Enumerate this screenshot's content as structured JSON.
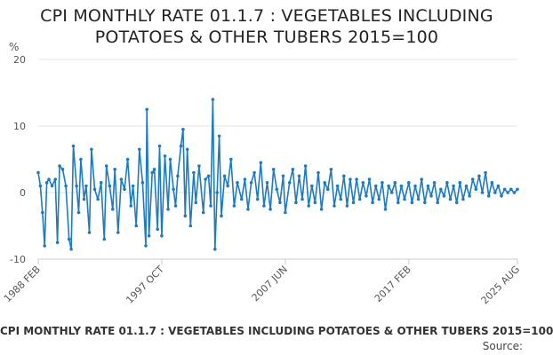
{
  "chart_data": {
    "type": "line",
    "title_lines": [
      "CPI MONTHLY RATE 01.1.7 : VEGETABLES INCLUDING",
      "POTATOES & OTHER TUBERS 2015=100"
    ],
    "ylabel": "%",
    "xlabel": "",
    "ylim": [
      -10,
      20
    ],
    "yticks": [
      -10,
      0,
      10,
      20
    ],
    "xlim": [
      "1988-02",
      "2025-08"
    ],
    "xticks": [
      "1988 FEB",
      "1997 OCT",
      "2007 JUN",
      "2017 FEB",
      "2025 AUG"
    ],
    "grid": "horizontal",
    "series_color": "#1f7bc1",
    "series": [
      {
        "points": [
          [
            "1988-02",
            3.0
          ],
          [
            "1988-04",
            1.0
          ],
          [
            "1988-06",
            -3.0
          ],
          [
            "1988-08",
            -8.0
          ],
          [
            "1988-10",
            1.5
          ],
          [
            "1988-12",
            2.0
          ],
          [
            "1989-03",
            1.0
          ],
          [
            "1989-06",
            2.0
          ],
          [
            "1989-08",
            -7.5
          ],
          [
            "1989-10",
            4.0
          ],
          [
            "1990-01",
            3.5
          ],
          [
            "1990-04",
            1.0
          ],
          [
            "1990-07",
            -7.0
          ],
          [
            "1990-09",
            -8.5
          ],
          [
            "1990-11",
            7.0
          ],
          [
            "1991-02",
            1.0
          ],
          [
            "1991-04",
            -3.0
          ],
          [
            "1991-06",
            5.0
          ],
          [
            "1991-09",
            -1.0
          ],
          [
            "1991-11",
            1.0
          ],
          [
            "1992-02",
            -6.0
          ],
          [
            "1992-04",
            6.5
          ],
          [
            "1992-07",
            0.5
          ],
          [
            "1992-10",
            -1.0
          ],
          [
            "1993-01",
            1.5
          ],
          [
            "1993-04",
            -7.0
          ],
          [
            "1993-06",
            4.0
          ],
          [
            "1993-09",
            1.0
          ],
          [
            "1993-12",
            -2.5
          ],
          [
            "1994-02",
            3.5
          ],
          [
            "1994-05",
            -6.0
          ],
          [
            "1994-08",
            2.0
          ],
          [
            "1994-11",
            0.5
          ],
          [
            "1995-02",
            5.0
          ],
          [
            "1995-05",
            -2.0
          ],
          [
            "1995-07",
            1.0
          ],
          [
            "1995-10",
            -5.0
          ],
          [
            "1996-01",
            6.5
          ],
          [
            "1996-04",
            1.5
          ],
          [
            "1996-07",
            -8.0
          ],
          [
            "1996-08",
            12.5
          ],
          [
            "1996-10",
            -6.5
          ],
          [
            "1997-01",
            3.0
          ],
          [
            "1997-03",
            3.5
          ],
          [
            "1997-06",
            -5.5
          ],
          [
            "1997-08",
            7.0
          ],
          [
            "1997-10",
            -6.5
          ],
          [
            "1998-01",
            5.5
          ],
          [
            "1998-04",
            -2.5
          ],
          [
            "1998-06",
            5.0
          ],
          [
            "1998-09",
            0.5
          ],
          [
            "1998-11",
            -2.0
          ],
          [
            "1999-01",
            2.5
          ],
          [
            "1999-04",
            7.0
          ],
          [
            "1999-06",
            9.5
          ],
          [
            "1999-08",
            -3.5
          ],
          [
            "1999-10",
            6.5
          ],
          [
            "2000-01",
            -5.0
          ],
          [
            "2000-04",
            3.0
          ],
          [
            "2000-06",
            -1.5
          ],
          [
            "2000-09",
            4.0
          ],
          [
            "2001-01",
            -3.0
          ],
          [
            "2001-03",
            2.0
          ],
          [
            "2001-06",
            2.5
          ],
          [
            "2001-08",
            -2.0
          ],
          [
            "2001-10",
            14.0
          ],
          [
            "2001-12",
            -8.5
          ],
          [
            "2002-02",
            0.0
          ],
          [
            "2002-04",
            8.5
          ],
          [
            "2002-06",
            -3.5
          ],
          [
            "2002-09",
            2.5
          ],
          [
            "2002-12",
            1.0
          ],
          [
            "2003-03",
            5.0
          ],
          [
            "2003-06",
            -2.0
          ],
          [
            "2003-09",
            1.5
          ],
          [
            "2004-01",
            -1.0
          ],
          [
            "2004-04",
            2.0
          ],
          [
            "2004-07",
            -2.5
          ],
          [
            "2004-10",
            1.5
          ],
          [
            "2005-01",
            3.0
          ],
          [
            "2005-04",
            -1.0
          ],
          [
            "2005-07",
            4.5
          ],
          [
            "2005-10",
            -2.0
          ],
          [
            "2006-01",
            1.5
          ],
          [
            "2006-04",
            -2.5
          ],
          [
            "2006-07",
            3.5
          ],
          [
            "2006-10",
            0.5
          ],
          [
            "2007-01",
            -1.5
          ],
          [
            "2007-04",
            2.5
          ],
          [
            "2007-06",
            -3.0
          ],
          [
            "2007-10",
            1.5
          ],
          [
            "2008-01",
            3.5
          ],
          [
            "2008-04",
            -1.5
          ],
          [
            "2008-07",
            2.5
          ],
          [
            "2008-10",
            -1.0
          ],
          [
            "2009-01",
            4.0
          ],
          [
            "2009-04",
            -2.0
          ],
          [
            "2009-07",
            1.0
          ],
          [
            "2009-10",
            -1.5
          ],
          [
            "2010-01",
            3.0
          ],
          [
            "2010-04",
            -2.5
          ],
          [
            "2010-07",
            1.5
          ],
          [
            "2010-10",
            0.5
          ],
          [
            "2011-01",
            3.5
          ],
          [
            "2011-04",
            -2.0
          ],
          [
            "2011-07",
            1.0
          ],
          [
            "2011-10",
            -1.0
          ],
          [
            "2012-01",
            2.5
          ],
          [
            "2012-04",
            -2.0
          ],
          [
            "2012-07",
            2.0
          ],
          [
            "2012-10",
            -1.5
          ],
          [
            "2013-01",
            2.0
          ],
          [
            "2013-04",
            -1.0
          ],
          [
            "2013-07",
            1.5
          ],
          [
            "2013-10",
            -0.5
          ],
          [
            "2014-01",
            2.0
          ],
          [
            "2014-04",
            -1.5
          ],
          [
            "2014-07",
            1.0
          ],
          [
            "2014-10",
            -1.0
          ],
          [
            "2015-01",
            1.5
          ],
          [
            "2015-04",
            -2.5
          ],
          [
            "2015-07",
            1.0
          ],
          [
            "2015-10",
            0.0
          ],
          [
            "2016-01",
            1.5
          ],
          [
            "2016-04",
            -1.5
          ],
          [
            "2016-07",
            1.0
          ],
          [
            "2016-10",
            -1.0
          ],
          [
            "2017-02",
            1.5
          ],
          [
            "2017-05",
            -1.5
          ],
          [
            "2017-08",
            1.0
          ],
          [
            "2017-11",
            -1.0
          ],
          [
            "2018-02",
            2.0
          ],
          [
            "2018-05",
            -1.5
          ],
          [
            "2018-08",
            1.0
          ],
          [
            "2018-11",
            -0.5
          ],
          [
            "2019-02",
            1.5
          ],
          [
            "2019-05",
            -1.5
          ],
          [
            "2019-08",
            0.5
          ],
          [
            "2019-11",
            -0.5
          ],
          [
            "2020-02",
            1.5
          ],
          [
            "2020-05",
            -1.0
          ],
          [
            "2020-08",
            1.0
          ],
          [
            "2020-11",
            -1.5
          ],
          [
            "2021-02",
            1.5
          ],
          [
            "2021-05",
            -1.0
          ],
          [
            "2021-08",
            1.0
          ],
          [
            "2021-11",
            -0.5
          ],
          [
            "2022-02",
            2.0
          ],
          [
            "2022-05",
            0.5
          ],
          [
            "2022-08",
            2.5
          ],
          [
            "2022-11",
            0.0
          ],
          [
            "2023-02",
            3.0
          ],
          [
            "2023-05",
            -0.5
          ],
          [
            "2023-08",
            1.5
          ],
          [
            "2023-11",
            0.0
          ],
          [
            "2024-02",
            1.0
          ],
          [
            "2024-05",
            -0.5
          ],
          [
            "2024-08",
            0.5
          ],
          [
            "2024-11",
            0.0
          ],
          [
            "2025-02",
            0.5
          ],
          [
            "2025-05",
            0.0
          ],
          [
            "2025-08",
            0.5
          ]
        ]
      }
    ]
  },
  "footer": {
    "caption": "CPI MONTHLY RATE 01.1.7 : VEGETABLES INCLUDING POTATOES & OTHER TUBERS 2015=100",
    "source": "Source:"
  }
}
